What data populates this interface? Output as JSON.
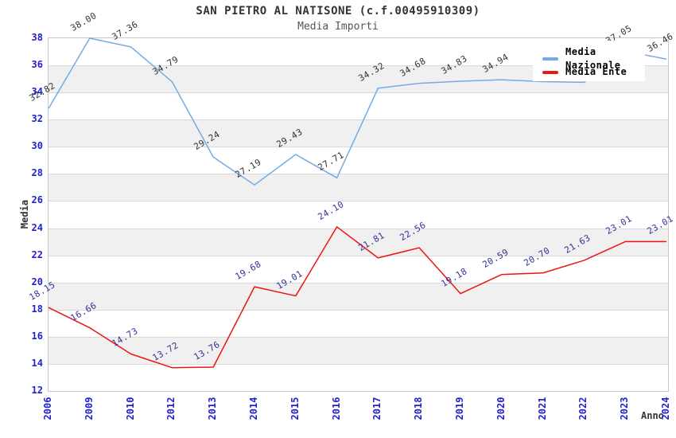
{
  "chart_data": {
    "type": "line",
    "title": "SAN PIETRO AL NATISONE (c.f.00495910309)",
    "subtitle": "Media Importi",
    "xlabel": "Anno",
    "ylabel": "Media",
    "ylim": [
      12,
      38
    ],
    "ytick_step": 2,
    "grid": true,
    "legend_position": "top-right",
    "band_color": "#f0f0f0",
    "categories": [
      "2006",
      "2009",
      "2010",
      "2012",
      "2013",
      "2014",
      "2015",
      "2016",
      "2017",
      "2018",
      "2019",
      "2020",
      "2021",
      "2022",
      "2023",
      "2024"
    ],
    "series": [
      {
        "name": "Media Nazionale",
        "color": "#72abe5",
        "label_color": "#333333",
        "values": [
          32.82,
          38.0,
          37.36,
          34.79,
          29.24,
          27.19,
          29.43,
          27.71,
          34.32,
          34.68,
          34.83,
          34.94,
          34.8,
          34.75,
          37.05,
          36.46
        ],
        "point_labels": [
          "32.82",
          "38.00",
          "37.36",
          "34.79",
          "29.24",
          "27.19",
          "29.43",
          "27.71",
          "34.32",
          "34.68",
          "34.83",
          "34.94",
          "",
          "",
          "37.05",
          "36.46"
        ]
      },
      {
        "name": "Media Ente",
        "color": "#ee1414",
        "label_color": "#333399",
        "values": [
          18.15,
          16.66,
          14.73,
          13.72,
          13.76,
          19.68,
          19.01,
          24.1,
          21.81,
          22.56,
          19.18,
          20.59,
          20.7,
          21.63,
          23.01,
          23.01
        ],
        "point_labels": [
          "18.15",
          "16.66",
          "14.73",
          "13.72",
          "13.76",
          "19.68",
          "19.01",
          "24.10",
          "21.81",
          "22.56",
          "19.18",
          "20.59",
          "20.70",
          "21.63",
          "23.01",
          "23.01"
        ]
      }
    ],
    "axis_tick_color": "#2222cc"
  }
}
